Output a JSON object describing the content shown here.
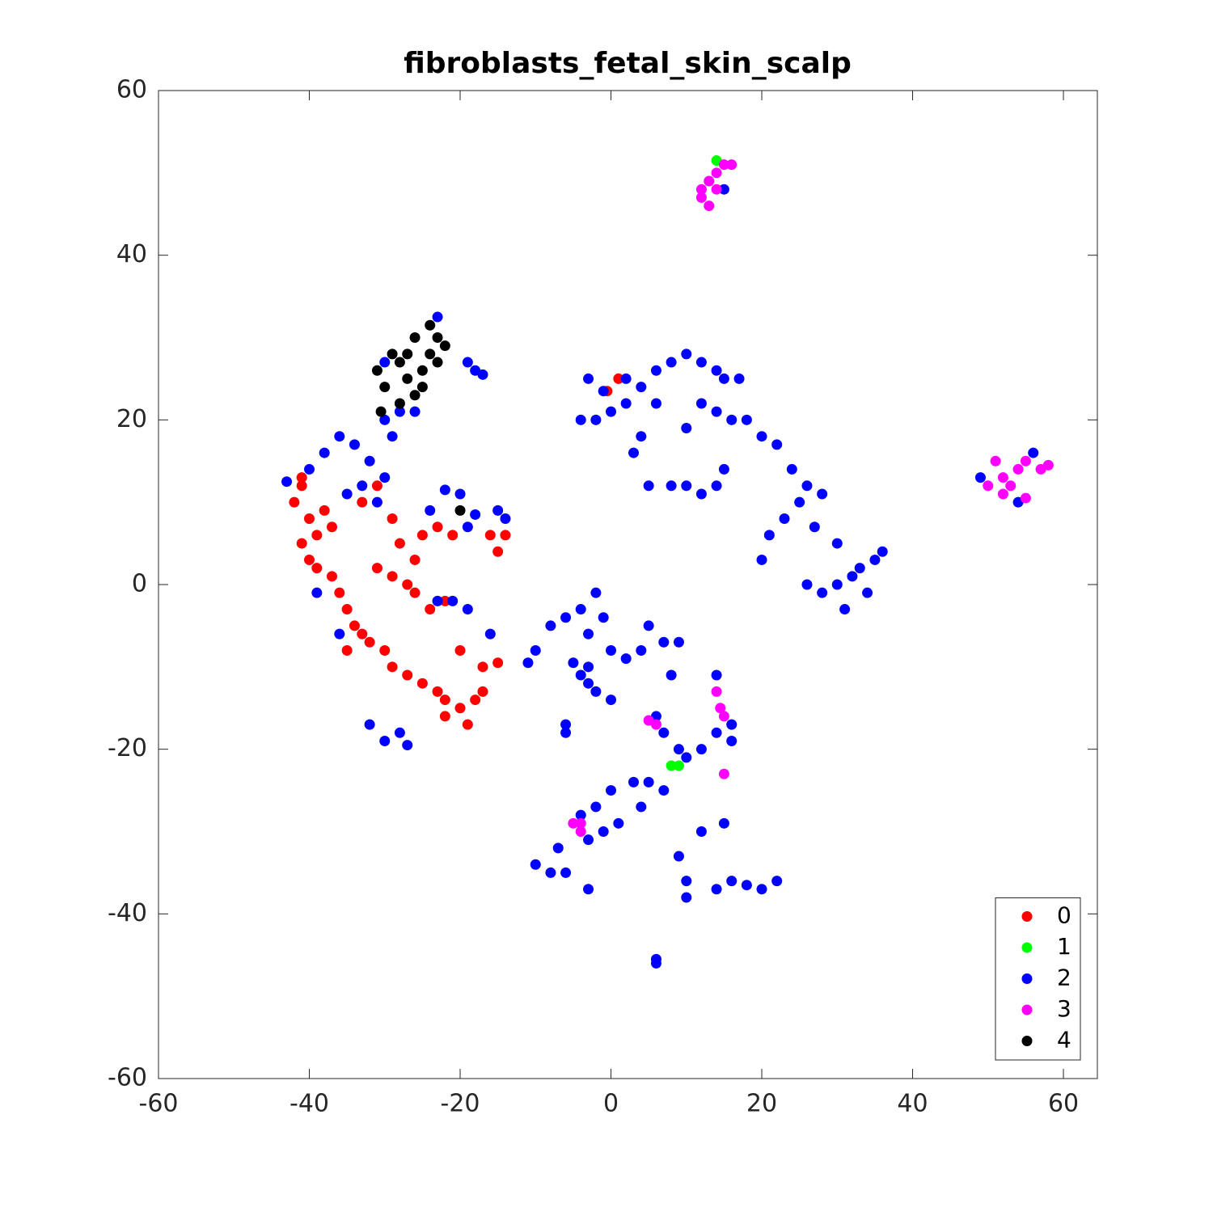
{
  "chart_data": {
    "type": "scatter",
    "title": "fibroblasts_fetal_skin_scalp",
    "xlim": [
      -60,
      64.5
    ],
    "ylim": [
      -60,
      60
    ],
    "xticks": [
      -60,
      -40,
      -20,
      0,
      20,
      40,
      60
    ],
    "yticks": [
      -60,
      -40,
      -20,
      0,
      20,
      40,
      60
    ],
    "grid": false,
    "legend_position": "lower right",
    "series": [
      {
        "name": "0",
        "color": "#ff0000",
        "x": [
          -41,
          -42,
          -40,
          -39,
          -41,
          -38,
          -40,
          -39,
          -37,
          -36,
          -35,
          -34,
          -33,
          -32,
          -30,
          -29,
          -27,
          -25,
          -23,
          -22,
          -20,
          -18,
          -22,
          -19,
          -17,
          -20,
          -17,
          -15,
          -31,
          -29,
          -27,
          -26,
          -28,
          -25,
          -23,
          -21,
          -16,
          -15,
          -14,
          -31,
          -33,
          -37,
          -41,
          -35,
          -24,
          -26,
          -22,
          -29,
          1,
          -0.5
        ],
        "y": [
          12,
          10,
          8,
          6,
          5,
          9,
          3,
          2,
          1,
          -1,
          -3,
          -5,
          -6,
          -7,
          -8,
          -10,
          -11,
          -12,
          -13,
          -14,
          -15,
          -14,
          -16,
          -17,
          -13,
          -8,
          -10,
          -9.5,
          2,
          1,
          0,
          3,
          5,
          6,
          7,
          6,
          6,
          4,
          6,
          12,
          10,
          7,
          13,
          -8,
          -3,
          -1,
          -2,
          8,
          25,
          23.5
        ]
      },
      {
        "name": "1",
        "color": "#00ff00",
        "x": [
          14,
          8,
          9
        ],
        "y": [
          51.5,
          -22,
          -22
        ]
      },
      {
        "name": "2",
        "color": "#0000ff",
        "x": [
          -43,
          -40,
          -38,
          -36,
          -34,
          -32,
          -30,
          -33,
          -31,
          -35,
          -30,
          -29,
          -28,
          -30,
          -26,
          -23,
          -19,
          -17,
          -18,
          -22,
          -20,
          -24,
          -19,
          -18,
          -15,
          -14,
          -21,
          -23,
          -19,
          -36,
          -39,
          -32,
          -30,
          -27,
          -28,
          -16,
          -8,
          -6,
          -4,
          -3,
          -2,
          -1,
          -5,
          -3,
          -2,
          0,
          -4,
          -10,
          -11,
          0,
          2,
          4,
          5,
          7,
          8,
          9,
          6,
          7,
          9,
          10,
          12,
          14,
          16,
          16,
          14,
          -6,
          -6,
          -3,
          -10,
          -8,
          -6,
          -3,
          -4,
          -2,
          0,
          -1,
          -3,
          1,
          -7,
          3,
          5,
          4,
          7,
          9,
          12,
          15,
          10,
          10,
          14,
          16,
          18,
          20,
          22,
          6,
          6,
          -4,
          -2,
          0,
          2,
          4,
          6,
          8,
          10,
          12,
          14,
          15,
          17,
          12,
          14,
          16,
          18,
          20,
          22,
          24,
          26,
          28,
          25,
          23,
          27,
          21,
          20,
          26,
          28,
          30,
          32,
          34,
          33,
          31,
          35,
          36,
          30,
          8,
          10,
          12,
          14,
          15,
          5,
          3,
          4,
          2,
          -3,
          6,
          10,
          15,
          49,
          54,
          56,
          -1
        ],
        "y": [
          12.5,
          14,
          16,
          18,
          17,
          15,
          13,
          12,
          10,
          11,
          20,
          18,
          21,
          27,
          21,
          32.5,
          27,
          25.5,
          26,
          11.5,
          11,
          9,
          7,
          8.5,
          9,
          8,
          -2,
          -2,
          -3,
          -6,
          -1,
          -17,
          -19,
          -19.5,
          -18,
          -6,
          -5,
          -4,
          -3,
          -6,
          -1,
          -4,
          -9.5,
          -10,
          -13,
          -14,
          -11,
          -8,
          -9.5,
          -8,
          -9,
          -8,
          -5,
          -7,
          -11,
          -7,
          -16,
          -18,
          -20,
          -21,
          -20,
          -18,
          -19,
          -17,
          -11,
          -17,
          -18,
          -12,
          -34,
          -35,
          -35,
          -37,
          -28,
          -27,
          -25,
          -30,
          -31,
          -29,
          -32,
          -24,
          -24,
          -27,
          -25,
          -33,
          -30,
          -29,
          -36,
          -38,
          -37,
          -36,
          -36.5,
          -37,
          -36,
          -45.5,
          -46,
          20,
          20,
          21,
          22,
          24,
          26,
          27,
          28,
          27,
          26,
          25,
          25,
          22,
          21,
          20,
          20,
          18,
          17,
          14,
          12,
          11,
          10,
          8,
          7,
          6,
          3,
          0,
          -1,
          0,
          1,
          -1,
          2,
          -3,
          3,
          4,
          5,
          12,
          12,
          11,
          12,
          14,
          12,
          16,
          18,
          25,
          25,
          22,
          19,
          48,
          13,
          10,
          16,
          23.5
        ]
      },
      {
        "name": "3",
        "color": "#ff00ff",
        "x": [
          12,
          13,
          14,
          12,
          14,
          15,
          16,
          13,
          52,
          53,
          54,
          55,
          57,
          58,
          51,
          52,
          50,
          55,
          14,
          14.5,
          15,
          15,
          5,
          6,
          -4,
          -5,
          -4
        ],
        "y": [
          47,
          49,
          50,
          48,
          48,
          51,
          51,
          46,
          13,
          12,
          14,
          15,
          14,
          14.5,
          15,
          11,
          12,
          10.5,
          -13,
          -15,
          -16,
          -23,
          -16.5,
          -17,
          -29,
          -29,
          -30
        ]
      },
      {
        "name": "4",
        "color": "#000000",
        "x": [
          -31,
          -30,
          -29,
          -28,
          -27,
          -26,
          -25,
          -24,
          -23,
          -22,
          -26,
          -27,
          -25,
          -28,
          -24,
          -30.5,
          -20,
          -23
        ],
        "y": [
          26,
          24,
          28,
          27,
          25,
          23,
          26,
          28,
          30,
          29,
          30,
          28,
          24,
          22,
          31.5,
          21,
          9,
          27
        ]
      }
    ]
  }
}
